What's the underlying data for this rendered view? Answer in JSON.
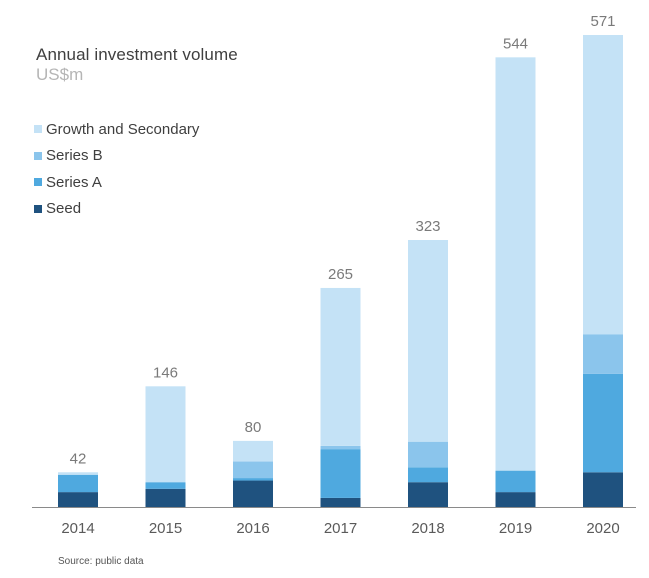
{
  "chart_data": {
    "type": "bar",
    "stacked": true,
    "title": "Annual investment volume",
    "subtitle": "US$m",
    "xlabel": "",
    "ylabel": "",
    "ylim": [
      0,
      571
    ],
    "grid": false,
    "legend_position": "top-left",
    "categories": [
      "2014",
      "2015",
      "2016",
      "2017",
      "2018",
      "2019",
      "2020"
    ],
    "totals": [
      42,
      146,
      80,
      265,
      323,
      544,
      571
    ],
    "series": [
      {
        "name": "Seed",
        "color": "#1f527f",
        "values": [
          18,
          22,
          32,
          11,
          30,
          18,
          42
        ]
      },
      {
        "name": "Series A",
        "color": "#4fa9df",
        "values": [
          21,
          8,
          3,
          59,
          18,
          26,
          119
        ]
      },
      {
        "name": "Series B",
        "color": "#8bc5ec",
        "values": [
          0,
          0,
          20,
          4,
          31,
          0,
          48
        ]
      },
      {
        "name": "Growth and Secondary",
        "color": "#c4e2f6",
        "values": [
          3,
          116,
          25,
          191,
          244,
          500,
          362
        ]
      }
    ],
    "legend_order": [
      "Growth and Secondary",
      "Series B",
      "Series A",
      "Seed"
    ],
    "source": "Source: public data"
  },
  "colors": {
    "axis": "#8a8a8a"
  }
}
